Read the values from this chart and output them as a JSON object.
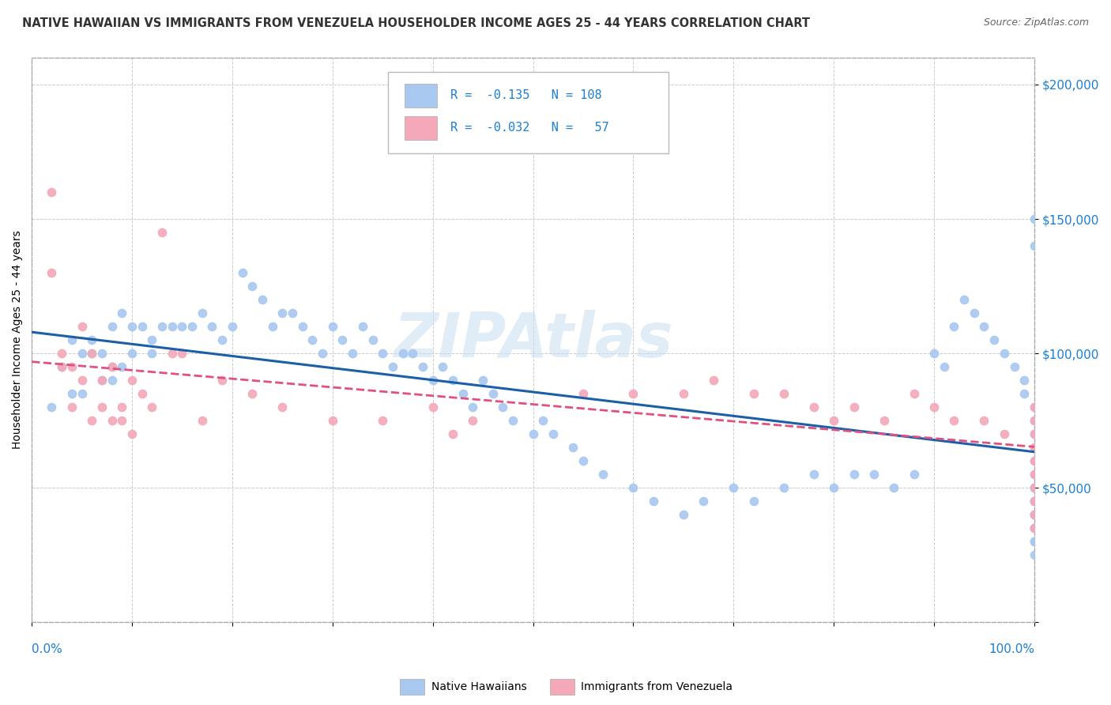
{
  "title": "NATIVE HAWAIIAN VS IMMIGRANTS FROM VENEZUELA HOUSEHOLDER INCOME AGES 25 - 44 YEARS CORRELATION CHART",
  "source": "Source: ZipAtlas.com",
  "ylabel": "Householder Income Ages 25 - 44 years",
  "xlim": [
    0,
    1
  ],
  "ylim": [
    0,
    210000
  ],
  "watermark": "ZIPAtlas",
  "legend_r1": "R =  -0.135",
  "legend_n1": "N = 108",
  "legend_r2": "R =  -0.032",
  "legend_n2": "N =  57",
  "blue_color": "#a8c8f0",
  "pink_color": "#f4a8b8",
  "blue_line_color": "#1a5fa8",
  "pink_line_color": "#e05080",
  "blue_scatter_x": [
    0.02,
    0.03,
    0.04,
    0.04,
    0.05,
    0.05,
    0.06,
    0.06,
    0.07,
    0.07,
    0.08,
    0.08,
    0.08,
    0.09,
    0.09,
    0.1,
    0.1,
    0.11,
    0.12,
    0.12,
    0.13,
    0.14,
    0.15,
    0.16,
    0.17,
    0.18,
    0.19,
    0.2,
    0.21,
    0.22,
    0.23,
    0.24,
    0.25,
    0.26,
    0.27,
    0.28,
    0.29,
    0.3,
    0.31,
    0.32,
    0.33,
    0.34,
    0.35,
    0.36,
    0.37,
    0.38,
    0.39,
    0.4,
    0.41,
    0.42,
    0.43,
    0.44,
    0.45,
    0.46,
    0.47,
    0.48,
    0.5,
    0.51,
    0.52,
    0.54,
    0.55,
    0.57,
    0.6,
    0.62,
    0.65,
    0.67,
    0.7,
    0.72,
    0.75,
    0.78,
    0.8,
    0.82,
    0.84,
    0.86,
    0.88,
    0.9,
    0.91,
    0.92,
    0.93,
    0.94,
    0.95,
    0.96,
    0.97,
    0.98,
    0.99,
    0.99,
    1.0,
    1.0,
    1.0,
    1.0,
    1.0,
    1.0,
    1.0,
    1.0,
    1.0,
    1.0,
    1.0,
    1.0,
    1.0,
    1.0,
    1.0,
    1.0,
    1.0,
    1.0,
    1.0,
    1.0,
    1.0,
    1.0
  ],
  "blue_scatter_y": [
    80000,
    95000,
    105000,
    85000,
    100000,
    85000,
    100000,
    105000,
    100000,
    90000,
    110000,
    95000,
    90000,
    115000,
    95000,
    110000,
    100000,
    110000,
    105000,
    100000,
    110000,
    110000,
    110000,
    110000,
    115000,
    110000,
    105000,
    110000,
    130000,
    125000,
    120000,
    110000,
    115000,
    115000,
    110000,
    105000,
    100000,
    110000,
    105000,
    100000,
    110000,
    105000,
    100000,
    95000,
    100000,
    100000,
    95000,
    90000,
    95000,
    90000,
    85000,
    80000,
    90000,
    85000,
    80000,
    75000,
    70000,
    75000,
    70000,
    65000,
    60000,
    55000,
    50000,
    45000,
    40000,
    45000,
    50000,
    45000,
    50000,
    55000,
    50000,
    55000,
    55000,
    50000,
    55000,
    100000,
    95000,
    110000,
    120000,
    115000,
    110000,
    105000,
    100000,
    95000,
    90000,
    85000,
    80000,
    75000,
    70000,
    65000,
    60000,
    55000,
    50000,
    45000,
    40000,
    35000,
    150000,
    140000,
    45000,
    50000,
    40000,
    35000,
    30000,
    25000,
    45000,
    40000,
    35000,
    30000
  ],
  "pink_scatter_x": [
    0.02,
    0.02,
    0.03,
    0.03,
    0.04,
    0.04,
    0.05,
    0.05,
    0.06,
    0.06,
    0.07,
    0.07,
    0.08,
    0.08,
    0.09,
    0.09,
    0.1,
    0.1,
    0.11,
    0.12,
    0.13,
    0.14,
    0.15,
    0.17,
    0.19,
    0.22,
    0.25,
    0.3,
    0.35,
    0.4,
    0.42,
    0.44,
    0.55,
    0.6,
    0.65,
    0.68,
    0.72,
    0.75,
    0.78,
    0.8,
    0.82,
    0.85,
    0.88,
    0.9,
    0.92,
    0.95,
    0.97,
    1.0,
    1.0,
    1.0,
    1.0,
    1.0,
    1.0,
    1.0,
    1.0,
    1.0,
    1.0
  ],
  "pink_scatter_y": [
    160000,
    130000,
    100000,
    95000,
    95000,
    80000,
    110000,
    90000,
    100000,
    75000,
    90000,
    80000,
    95000,
    75000,
    80000,
    75000,
    90000,
    70000,
    85000,
    80000,
    145000,
    100000,
    100000,
    75000,
    90000,
    85000,
    80000,
    75000,
    75000,
    80000,
    70000,
    75000,
    85000,
    85000,
    85000,
    90000,
    85000,
    85000,
    80000,
    75000,
    80000,
    75000,
    85000,
    80000,
    75000,
    75000,
    70000,
    80000,
    75000,
    70000,
    65000,
    60000,
    55000,
    50000,
    45000,
    40000,
    35000
  ]
}
